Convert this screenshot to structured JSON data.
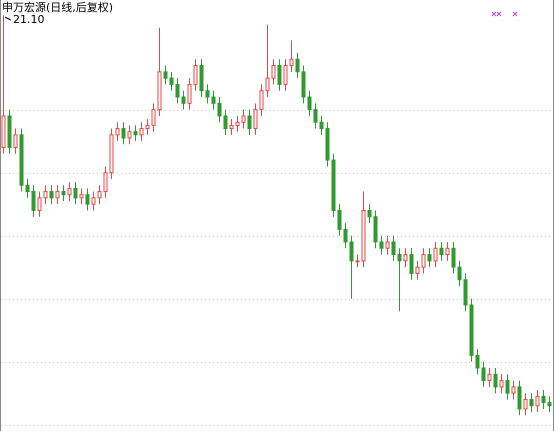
{
  "chart_data": {
    "type": "candlestick",
    "title": "申万宏源(日线,后复权)",
    "max_label": "21.10",
    "up_color": "#e8474a",
    "down_color": "#2f9a2f",
    "ylim": [
      14.5,
      21.34
    ],
    "open": [
      19.0,
      19.5,
      19.0,
      19.2,
      18.4,
      18.3,
      18.0,
      18.2,
      18.3,
      18.2,
      18.3,
      18.25,
      18.35,
      18.2,
      18.25,
      18.1,
      18.2,
      18.3,
      18.6,
      19.2,
      19.3,
      19.15,
      19.25,
      19.2,
      19.3,
      19.35,
      19.6,
      20.2,
      20.1,
      20.0,
      19.8,
      19.7,
      20.0,
      20.3,
      19.9,
      19.8,
      19.7,
      19.5,
      19.3,
      19.35,
      19.4,
      19.5,
      19.3,
      19.6,
      19.9,
      20.1,
      20.3,
      20.0,
      20.3,
      20.4,
      20.2,
      19.8,
      19.6,
      19.4,
      19.3,
      18.8,
      18.0,
      17.7,
      17.5,
      17.2,
      17.2,
      18.0,
      17.9,
      17.5,
      17.4,
      17.5,
      17.3,
      17.2,
      17.3,
      17.0,
      17.1,
      17.3,
      17.2,
      17.4,
      17.3,
      17.4,
      17.1,
      16.9,
      16.5,
      15.7,
      15.5,
      15.3,
      15.4,
      15.2,
      15.3,
      15.1,
      15.2,
      14.85,
      15.0,
      14.9,
      15.05,
      14.95
    ],
    "high": [
      21.1,
      19.6,
      19.3,
      19.3,
      18.5,
      18.4,
      18.3,
      18.4,
      18.4,
      18.4,
      18.4,
      18.45,
      18.45,
      18.35,
      18.35,
      18.3,
      18.4,
      18.7,
      19.3,
      19.4,
      19.4,
      19.35,
      19.35,
      19.4,
      19.45,
      19.7,
      20.9,
      20.3,
      20.2,
      20.1,
      19.9,
      20.1,
      20.4,
      20.4,
      20.0,
      19.9,
      19.8,
      19.6,
      19.45,
      19.5,
      19.6,
      19.6,
      19.7,
      20.0,
      20.95,
      20.4,
      20.4,
      20.4,
      20.7,
      20.5,
      20.3,
      19.9,
      19.7,
      19.5,
      19.4,
      18.9,
      18.1,
      17.8,
      17.6,
      17.3,
      18.3,
      18.1,
      18.0,
      17.6,
      17.6,
      17.6,
      17.4,
      17.4,
      17.4,
      17.2,
      17.4,
      17.4,
      17.5,
      17.5,
      17.5,
      17.5,
      17.2,
      17.0,
      16.6,
      15.8,
      15.6,
      15.5,
      15.5,
      15.4,
      15.4,
      15.3,
      15.3,
      15.1,
      15.1,
      15.15,
      15.15,
      15.05
    ],
    "low": [
      18.9,
      18.9,
      18.9,
      18.3,
      18.2,
      17.9,
      17.9,
      18.1,
      18.1,
      18.1,
      18.15,
      18.15,
      18.1,
      18.1,
      18.0,
      18.0,
      18.1,
      18.2,
      18.5,
      19.1,
      19.05,
      19.05,
      19.1,
      19.1,
      19.2,
      19.25,
      19.5,
      20.0,
      19.9,
      19.7,
      19.6,
      19.6,
      19.9,
      19.8,
      19.7,
      19.6,
      19.4,
      19.2,
      19.2,
      19.25,
      19.3,
      19.2,
      19.2,
      19.5,
      19.8,
      20.0,
      19.9,
      19.9,
      20.2,
      20.1,
      19.7,
      19.5,
      19.3,
      19.2,
      18.7,
      17.9,
      17.6,
      17.4,
      16.6,
      17.1,
      17.1,
      17.8,
      17.4,
      17.3,
      17.3,
      17.2,
      16.4,
      17.1,
      16.9,
      16.9,
      17.0,
      17.1,
      17.1,
      17.2,
      17.2,
      17.0,
      16.8,
      16.4,
      15.6,
      15.4,
      15.2,
      15.2,
      15.1,
      15.1,
      15.0,
      15.0,
      14.75,
      14.75,
      14.8,
      14.8,
      14.85,
      14.8
    ],
    "close": [
      19.5,
      19.0,
      19.2,
      18.4,
      18.3,
      18.0,
      18.2,
      18.3,
      18.2,
      18.3,
      18.25,
      18.35,
      18.2,
      18.25,
      18.1,
      18.2,
      18.3,
      18.6,
      19.2,
      19.3,
      19.15,
      19.25,
      19.2,
      19.3,
      19.35,
      19.6,
      20.2,
      20.1,
      20.0,
      19.8,
      19.7,
      20.0,
      20.3,
      19.9,
      19.8,
      19.7,
      19.5,
      19.3,
      19.35,
      19.4,
      19.5,
      19.3,
      19.6,
      19.9,
      20.1,
      20.3,
      20.0,
      20.3,
      20.4,
      20.2,
      19.8,
      19.6,
      19.4,
      19.3,
      18.8,
      18.0,
      17.7,
      17.5,
      17.2,
      17.2,
      18.0,
      17.9,
      17.5,
      17.4,
      17.5,
      17.3,
      17.2,
      17.3,
      17.0,
      17.1,
      17.3,
      17.2,
      17.4,
      17.3,
      17.4,
      17.1,
      16.9,
      16.5,
      15.7,
      15.5,
      15.3,
      15.4,
      15.2,
      15.3,
      15.1,
      15.2,
      14.85,
      15.0,
      14.9,
      15.05,
      14.95,
      14.9
    ]
  }
}
